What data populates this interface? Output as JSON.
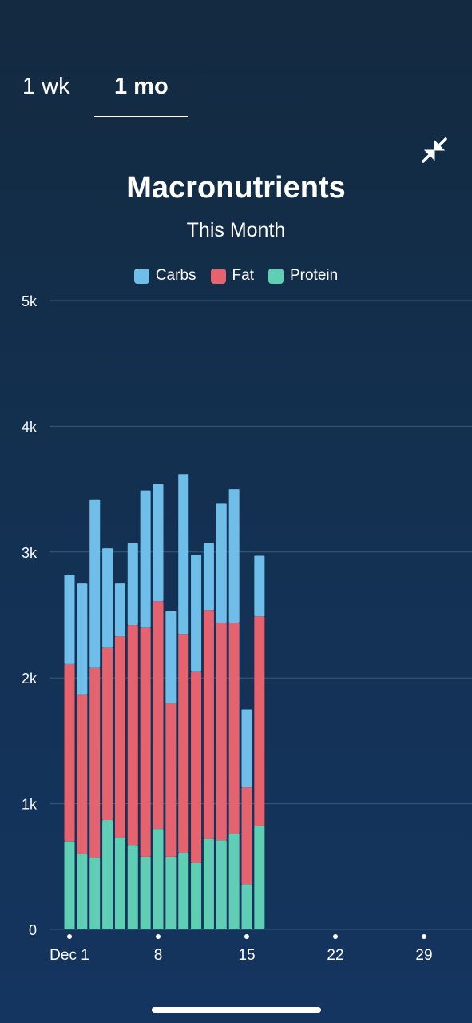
{
  "tabs": [
    {
      "label": "1 wk",
      "selected": false
    },
    {
      "label": "1 mo",
      "selected": true
    }
  ],
  "icons": {
    "collapse": "collapse-arrows-icon"
  },
  "colors": {
    "carbs": "#6ebee9",
    "fat": "#e5626f",
    "protein": "#5fceb4",
    "grid": "#3e5a78"
  },
  "chart_data": {
    "type": "bar",
    "stacked": true,
    "title": "Macronutrients",
    "subtitle": "This Month",
    "legend": [
      "Carbs",
      "Fat",
      "Protein"
    ],
    "legend_position": "top-center",
    "y_ticks": [
      "0",
      "1k",
      "2k",
      "3k",
      "4k",
      "5k"
    ],
    "ylim": [
      0,
      5000
    ],
    "x_ticks": [
      {
        "label": "Dec 1",
        "day": 1
      },
      {
        "label": "8",
        "day": 8
      },
      {
        "label": "15",
        "day": 15
      },
      {
        "label": "22",
        "day": 22
      },
      {
        "label": "29",
        "day": 29
      }
    ],
    "x_domain_days": [
      1,
      29
    ],
    "grid": true,
    "categories": [
      "Dec 1",
      "Dec 2",
      "Dec 3",
      "Dec 4",
      "Dec 5",
      "Dec 6",
      "Dec 7",
      "Dec 8",
      "Dec 9",
      "Dec 10",
      "Dec 11",
      "Dec 12",
      "Dec 13",
      "Dec 14",
      "Dec 15",
      "Dec 16"
    ],
    "series": [
      {
        "name": "Protein",
        "values": [
          700,
          600,
          570,
          870,
          730,
          670,
          580,
          800,
          580,
          610,
          530,
          720,
          710,
          760,
          360,
          820
        ]
      },
      {
        "name": "Fat",
        "values": [
          1410,
          1270,
          1510,
          1370,
          1600,
          1750,
          1820,
          1810,
          1220,
          1740,
          1520,
          1820,
          1730,
          1680,
          770,
          1670
        ]
      },
      {
        "name": "Carbs",
        "values": [
          710,
          880,
          1340,
          790,
          420,
          650,
          1090,
          930,
          730,
          1270,
          930,
          530,
          950,
          1060,
          620,
          480
        ]
      }
    ]
  }
}
